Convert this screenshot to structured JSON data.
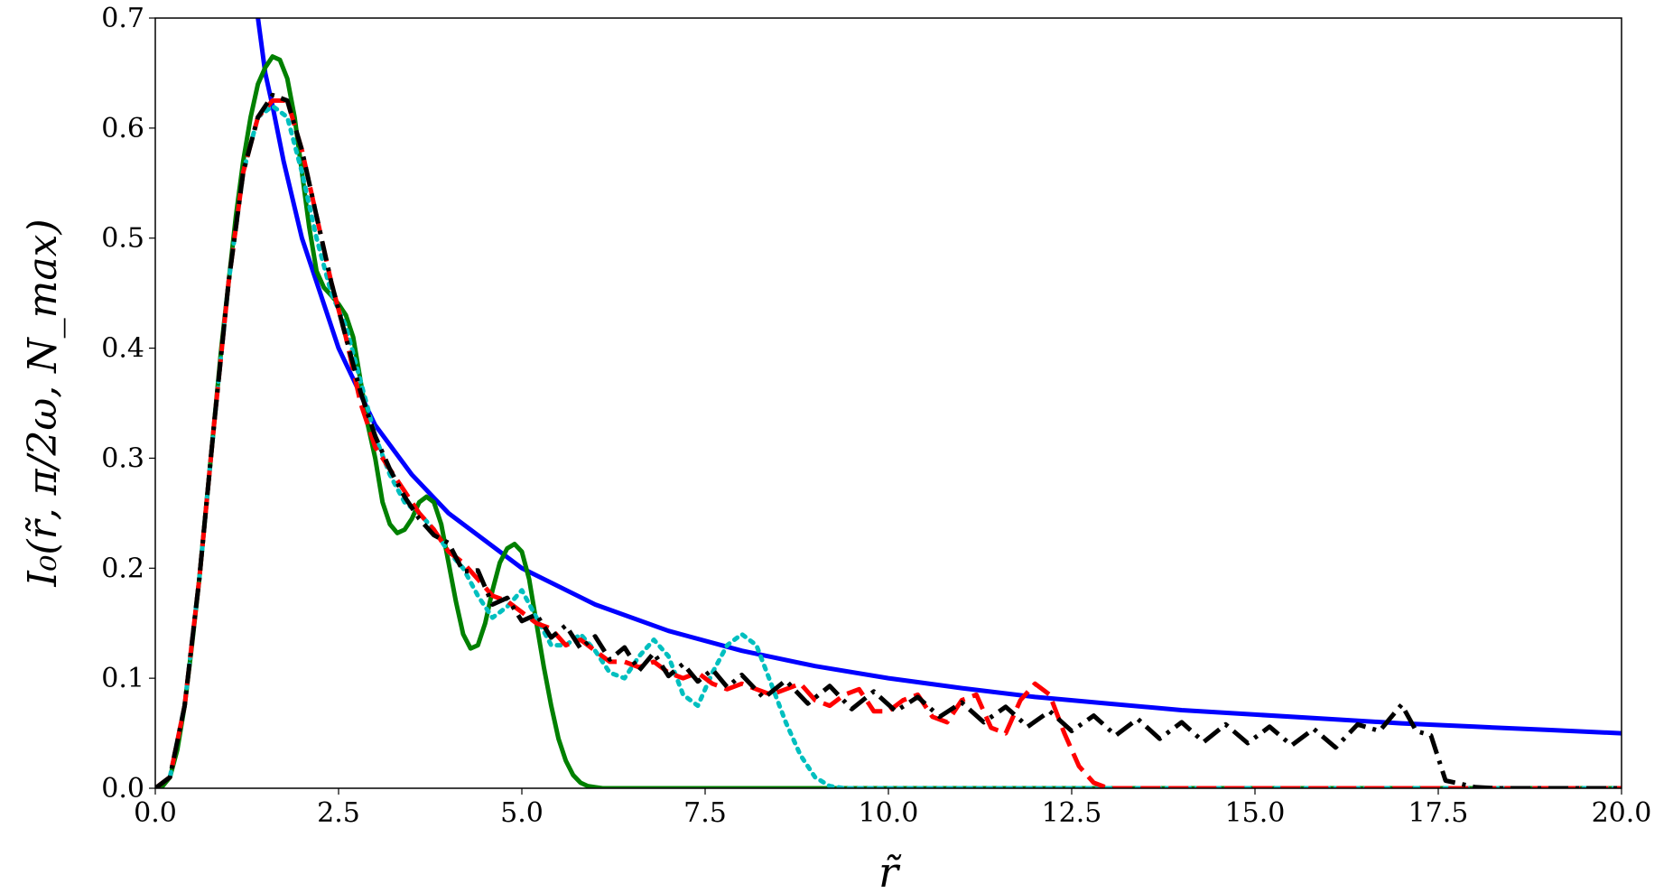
{
  "chart_data": {
    "type": "line",
    "title": "",
    "xlabel": "r̃",
    "ylabel": "I₀(r̃, π/2ω, N_max)",
    "xlim": [
      0,
      20
    ],
    "ylim": [
      0,
      0.7
    ],
    "grid": false,
    "legend": "none",
    "x_ticks": [
      "0.0",
      "2.5",
      "5.0",
      "7.5",
      "10.0",
      "12.5",
      "15.0",
      "17.5",
      "20.0"
    ],
    "y_ticks": [
      "0.0",
      "0.1",
      "0.2",
      "0.3",
      "0.4",
      "0.5",
      "0.6",
      "0.7"
    ],
    "series": [
      {
        "style": "solid",
        "color": "#0000ff",
        "x": [
          1.4,
          1.5,
          1.6,
          1.75,
          2.0,
          2.25,
          2.5,
          3.0,
          3.5,
          4.0,
          5.0,
          6.0,
          7.0,
          8.0,
          9.0,
          10.0,
          11.0,
          12.0,
          13.0,
          14.0,
          15.0,
          16.0,
          17.0,
          18.0,
          19.0,
          20.0
        ],
        "y": [
          0.7,
          0.65,
          0.62,
          0.57,
          0.5,
          0.45,
          0.4,
          0.33,
          0.285,
          0.25,
          0.2,
          0.167,
          0.143,
          0.125,
          0.111,
          0.1,
          0.091,
          0.083,
          0.077,
          0.071,
          0.067,
          0.063,
          0.059,
          0.056,
          0.053,
          0.05
        ]
      },
      {
        "style": "solid",
        "color": "#008000",
        "x": [
          0.0,
          0.1,
          0.2,
          0.3,
          0.4,
          0.5,
          0.6,
          0.7,
          0.8,
          0.9,
          1.0,
          1.1,
          1.2,
          1.3,
          1.4,
          1.5,
          1.6,
          1.7,
          1.8,
          1.9,
          2.0,
          2.1,
          2.2,
          2.3,
          2.4,
          2.5,
          2.6,
          2.7,
          2.8,
          2.9,
          3.0,
          3.1,
          3.2,
          3.3,
          3.4,
          3.5,
          3.6,
          3.7,
          3.8,
          3.9,
          4.0,
          4.1,
          4.2,
          4.3,
          4.4,
          4.5,
          4.6,
          4.7,
          4.8,
          4.9,
          5.0,
          5.1,
          5.2,
          5.3,
          5.4,
          5.5,
          5.6,
          5.7,
          5.8,
          5.9,
          6.0,
          6.1,
          6.2,
          6.3,
          6.4,
          6.5,
          6.6,
          6.7,
          6.8,
          7.0,
          7.2,
          7.5,
          8.0,
          10.0,
          15.0,
          20.0
        ],
        "y": [
          0.0,
          0.002,
          0.01,
          0.035,
          0.075,
          0.13,
          0.19,
          0.26,
          0.33,
          0.4,
          0.46,
          0.52,
          0.57,
          0.61,
          0.64,
          0.655,
          0.665,
          0.662,
          0.645,
          0.61,
          0.56,
          0.51,
          0.47,
          0.455,
          0.448,
          0.44,
          0.43,
          0.41,
          0.37,
          0.33,
          0.3,
          0.26,
          0.24,
          0.232,
          0.235,
          0.245,
          0.26,
          0.265,
          0.26,
          0.24,
          0.205,
          0.17,
          0.14,
          0.127,
          0.13,
          0.15,
          0.18,
          0.205,
          0.218,
          0.222,
          0.215,
          0.19,
          0.15,
          0.11,
          0.075,
          0.045,
          0.025,
          0.012,
          0.005,
          0.002,
          0.001,
          0.0,
          0.0,
          0.0,
          0.0,
          0.0,
          0.0,
          0.0,
          0.0,
          0.0,
          0.0,
          0.0,
          0.0,
          0.0,
          0.0,
          0.0
        ]
      },
      {
        "style": "dotted",
        "color": "#00bfbf",
        "x": [
          0.0,
          0.2,
          0.4,
          0.6,
          0.8,
          1.0,
          1.2,
          1.4,
          1.6,
          1.8,
          2.0,
          2.2,
          2.4,
          2.6,
          2.8,
          3.0,
          3.2,
          3.4,
          3.6,
          3.8,
          4.0,
          4.2,
          4.4,
          4.6,
          4.8,
          5.0,
          5.2,
          5.4,
          5.6,
          5.8,
          6.0,
          6.2,
          6.4,
          6.6,
          6.8,
          7.0,
          7.2,
          7.4,
          7.6,
          7.8,
          8.0,
          8.2,
          8.4,
          8.6,
          8.8,
          9.0,
          9.2,
          9.4,
          10.0,
          15.0,
          20.0
        ],
        "y": [
          0.0,
          0.01,
          0.075,
          0.19,
          0.33,
          0.46,
          0.56,
          0.61,
          0.62,
          0.61,
          0.56,
          0.5,
          0.45,
          0.42,
          0.37,
          0.32,
          0.285,
          0.26,
          0.25,
          0.235,
          0.215,
          0.2,
          0.175,
          0.155,
          0.165,
          0.18,
          0.155,
          0.13,
          0.13,
          0.14,
          0.125,
          0.105,
          0.1,
          0.12,
          0.135,
          0.12,
          0.085,
          0.075,
          0.105,
          0.13,
          0.14,
          0.13,
          0.095,
          0.06,
          0.03,
          0.01,
          0.002,
          0.0,
          0.0,
          0.0,
          0.0
        ]
      },
      {
        "style": "dashed",
        "color": "#ff0000",
        "x": [
          0.0,
          0.2,
          0.4,
          0.6,
          0.8,
          1.0,
          1.2,
          1.4,
          1.6,
          1.8,
          2.0,
          2.2,
          2.4,
          2.6,
          2.8,
          3.0,
          3.2,
          3.4,
          3.6,
          3.8,
          4.0,
          4.2,
          4.4,
          4.6,
          4.8,
          5.0,
          5.2,
          5.4,
          5.6,
          5.8,
          6.0,
          6.2,
          6.4,
          6.6,
          6.8,
          7.0,
          7.2,
          7.4,
          7.6,
          7.8,
          8.0,
          8.2,
          8.4,
          8.6,
          8.8,
          9.0,
          9.2,
          9.4,
          9.6,
          9.8,
          10.0,
          10.2,
          10.4,
          10.6,
          10.8,
          11.0,
          11.2,
          11.4,
          11.6,
          11.8,
          12.0,
          12.2,
          12.4,
          12.6,
          12.8,
          13.0,
          13.5,
          15.0,
          20.0
        ],
        "y": [
          0.0,
          0.01,
          0.075,
          0.19,
          0.33,
          0.46,
          0.56,
          0.61,
          0.625,
          0.625,
          0.58,
          0.52,
          0.46,
          0.41,
          0.35,
          0.31,
          0.29,
          0.27,
          0.25,
          0.235,
          0.215,
          0.205,
          0.19,
          0.175,
          0.17,
          0.16,
          0.15,
          0.145,
          0.13,
          0.135,
          0.125,
          0.115,
          0.115,
          0.11,
          0.115,
          0.105,
          0.1,
          0.105,
          0.095,
          0.09,
          0.095,
          0.09,
          0.085,
          0.09,
          0.095,
          0.08,
          0.075,
          0.085,
          0.09,
          0.07,
          0.07,
          0.08,
          0.085,
          0.065,
          0.06,
          0.08,
          0.085,
          0.055,
          0.05,
          0.08,
          0.095,
          0.085,
          0.05,
          0.02,
          0.005,
          0.0,
          0.0,
          0.0,
          0.0
        ]
      },
      {
        "style": "dashdot",
        "color": "#000000",
        "x": [
          0.0,
          0.2,
          0.4,
          0.6,
          0.8,
          1.0,
          1.2,
          1.4,
          1.6,
          1.8,
          2.0,
          2.2,
          2.4,
          2.6,
          2.8,
          3.0,
          3.2,
          3.4,
          3.6,
          3.8,
          4.0,
          4.2,
          4.4,
          4.6,
          4.8,
          5.0,
          5.2,
          5.4,
          5.6,
          5.8,
          6.0,
          6.2,
          6.4,
          6.6,
          6.8,
          7.0,
          7.2,
          7.4,
          7.6,
          7.8,
          8.0,
          8.3,
          8.6,
          8.9,
          9.2,
          9.5,
          9.8,
          10.1,
          10.4,
          10.7,
          11.0,
          11.3,
          11.6,
          11.9,
          12.2,
          12.5,
          12.8,
          13.1,
          13.4,
          13.7,
          14.0,
          14.3,
          14.6,
          14.9,
          15.2,
          15.5,
          15.8,
          16.1,
          16.4,
          16.7,
          17.0,
          17.2,
          17.4,
          17.6,
          17.8,
          18.0,
          18.3,
          19.0,
          20.0
        ],
        "y": [
          0.0,
          0.01,
          0.075,
          0.19,
          0.33,
          0.46,
          0.56,
          0.61,
          0.63,
          0.625,
          0.58,
          0.52,
          0.46,
          0.41,
          0.36,
          0.32,
          0.29,
          0.265,
          0.245,
          0.23,
          0.215,
          0.205,
          0.19,
          0.175,
          0.165,
          0.16,
          0.15,
          0.145,
          0.14,
          0.135,
          0.13,
          0.125,
          0.12,
          0.115,
          0.115,
          0.11,
          0.105,
          0.105,
          0.1,
          0.1,
          0.095,
          0.09,
          0.09,
          0.085,
          0.085,
          0.08,
          0.08,
          0.078,
          0.075,
          0.073,
          0.07,
          0.068,
          0.066,
          0.064,
          0.062,
          0.06,
          0.058,
          0.056,
          0.055,
          0.053,
          0.052,
          0.05,
          0.05,
          0.049,
          0.048,
          0.047,
          0.046,
          0.045,
          0.05,
          0.06,
          0.068,
          0.06,
          0.04,
          0.015,
          0.004,
          0.001,
          0.0,
          0.0,
          0.0
        ],
        "wiggle": 0.008
      }
    ]
  }
}
